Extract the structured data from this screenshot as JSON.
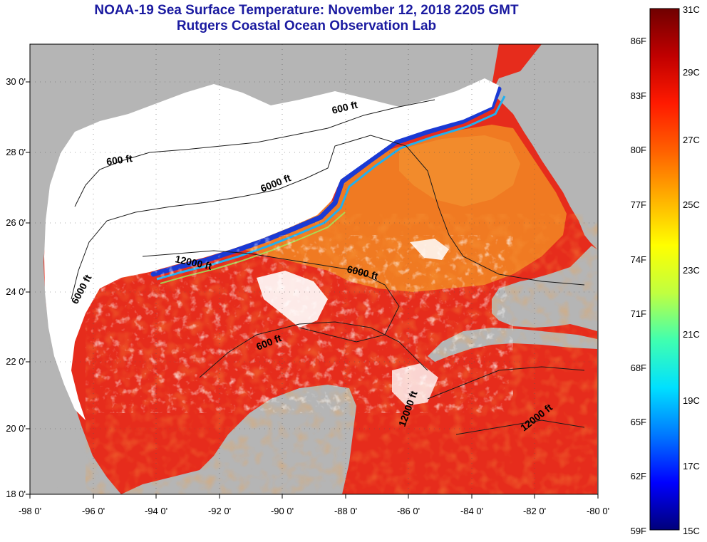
{
  "header": {
    "title_line1": "NOAA-19 Sea Surface Temperature:  November 12, 2018 2205 GMT",
    "title_line2": "Rutgers Coastal Ocean Observation Lab"
  },
  "map": {
    "longitude_ticks": [
      "-98 0'",
      "-96 0'",
      "-94 0'",
      "-92 0'",
      "-90 0'",
      "-88 0'",
      "-86 0'",
      "-84 0'",
      "-82 0'",
      "-80 0'"
    ],
    "latitude_ticks": [
      "30 0'",
      "28 0'",
      "26 0'",
      "24 0'",
      "22 0'",
      "20 0'",
      "18 0'"
    ],
    "contour_labels": [
      "600 ft",
      "600 ft",
      "6000 ft",
      "12000 ft",
      "6000 ft",
      "6000 ft",
      "600 ft",
      "12000 ft",
      "12000 ft"
    ],
    "colors": {
      "land": "#b5b5b5",
      "cloud": "#ffffff",
      "warm": "#e8281a",
      "mid": "#f07020",
      "cool": "#1e3cd8"
    }
  },
  "colorbar": {
    "celsius_labels": [
      "31C",
      "29C",
      "27C",
      "25C",
      "23C",
      "21C",
      "19C",
      "17C",
      "15C"
    ],
    "fahrenheit_labels": [
      "86F",
      "83F",
      "80F",
      "77F",
      "74F",
      "71F",
      "68F",
      "65F",
      "62F",
      "59F"
    ],
    "gradient": [
      "#00007a",
      "#0000ff",
      "#0078ff",
      "#00e0ff",
      "#40ffb0",
      "#c0ff40",
      "#ffff00",
      "#ffb000",
      "#ff6000",
      "#ff1a00",
      "#c00000",
      "#700000"
    ]
  }
}
